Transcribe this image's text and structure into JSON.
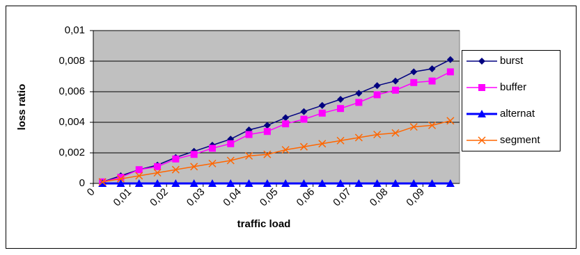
{
  "chart_data": {
    "type": "line",
    "x": [
      0.0025,
      0.0075,
      0.0125,
      0.0175,
      0.0225,
      0.0275,
      0.0325,
      0.0375,
      0.0425,
      0.0475,
      0.0525,
      0.0575,
      0.0625,
      0.0675,
      0.0725,
      0.0775,
      0.0825,
      0.0875,
      0.0925,
      0.0975
    ],
    "series": [
      {
        "name": "burst",
        "color": "#000080",
        "marker": "diamond",
        "values": [
          0.0001,
          0.0005,
          0.0009,
          0.0012,
          0.0017,
          0.0021,
          0.0025,
          0.0029,
          0.0035,
          0.0038,
          0.0043,
          0.0047,
          0.0051,
          0.0055,
          0.0059,
          0.0064,
          0.0067,
          0.0073,
          0.0075,
          0.0081
        ]
      },
      {
        "name": "buffer",
        "color": "#ff00ff",
        "marker": "square",
        "values": [
          0.0001,
          0.0004,
          0.0009,
          0.0011,
          0.0016,
          0.0019,
          0.0023,
          0.0026,
          0.0032,
          0.0034,
          0.0039,
          0.0042,
          0.0046,
          0.0049,
          0.0053,
          0.0058,
          0.0061,
          0.0066,
          0.0067,
          0.0073
        ]
      },
      {
        "name": "alternat",
        "color": "#0000ff",
        "marker": "triangle",
        "values": [
          0,
          0,
          0,
          0,
          0,
          0,
          0,
          0,
          0,
          0,
          0,
          0,
          0,
          0,
          0,
          0,
          0,
          0,
          0,
          0
        ]
      },
      {
        "name": "segment",
        "color": "#ff6600",
        "marker": "x",
        "values": [
          0.0001,
          0.0003,
          0.0005,
          0.0007,
          0.0009,
          0.0011,
          0.0013,
          0.0015,
          0.0018,
          0.0019,
          0.0022,
          0.0024,
          0.0026,
          0.0028,
          0.003,
          0.0032,
          0.0033,
          0.0037,
          0.0038,
          0.0041
        ]
      }
    ],
    "xlabel": "traffic load",
    "ylabel": "loss ratio",
    "xlim": [
      0,
      0.1
    ],
    "xticks": [
      0,
      {
        "value": 0.01,
        "label": "0,01"
      },
      {
        "value": 0.02,
        "label": "0,02"
      },
      {
        "value": 0.03,
        "label": "0,03"
      },
      {
        "value": 0.04,
        "label": "0,04"
      },
      {
        "value": 0.05,
        "label": "0,05"
      },
      {
        "value": 0.06,
        "label": "0,06"
      },
      {
        "value": 0.07,
        "label": "0,07"
      },
      {
        "value": 0.08,
        "label": "0,08"
      },
      {
        "value": 0.09,
        "label": "0,09"
      }
    ],
    "ylim": [
      0,
      0.01
    ],
    "yticks": [
      0,
      {
        "value": 0.002,
        "label": "0,002"
      },
      {
        "value": 0.004,
        "label": "0,004"
      },
      {
        "value": 0.006,
        "label": "0,006"
      },
      {
        "value": 0.008,
        "label": "0,008"
      },
      {
        "value": 0.01,
        "label": "0,01"
      }
    ],
    "grid": true,
    "legend": "right"
  }
}
